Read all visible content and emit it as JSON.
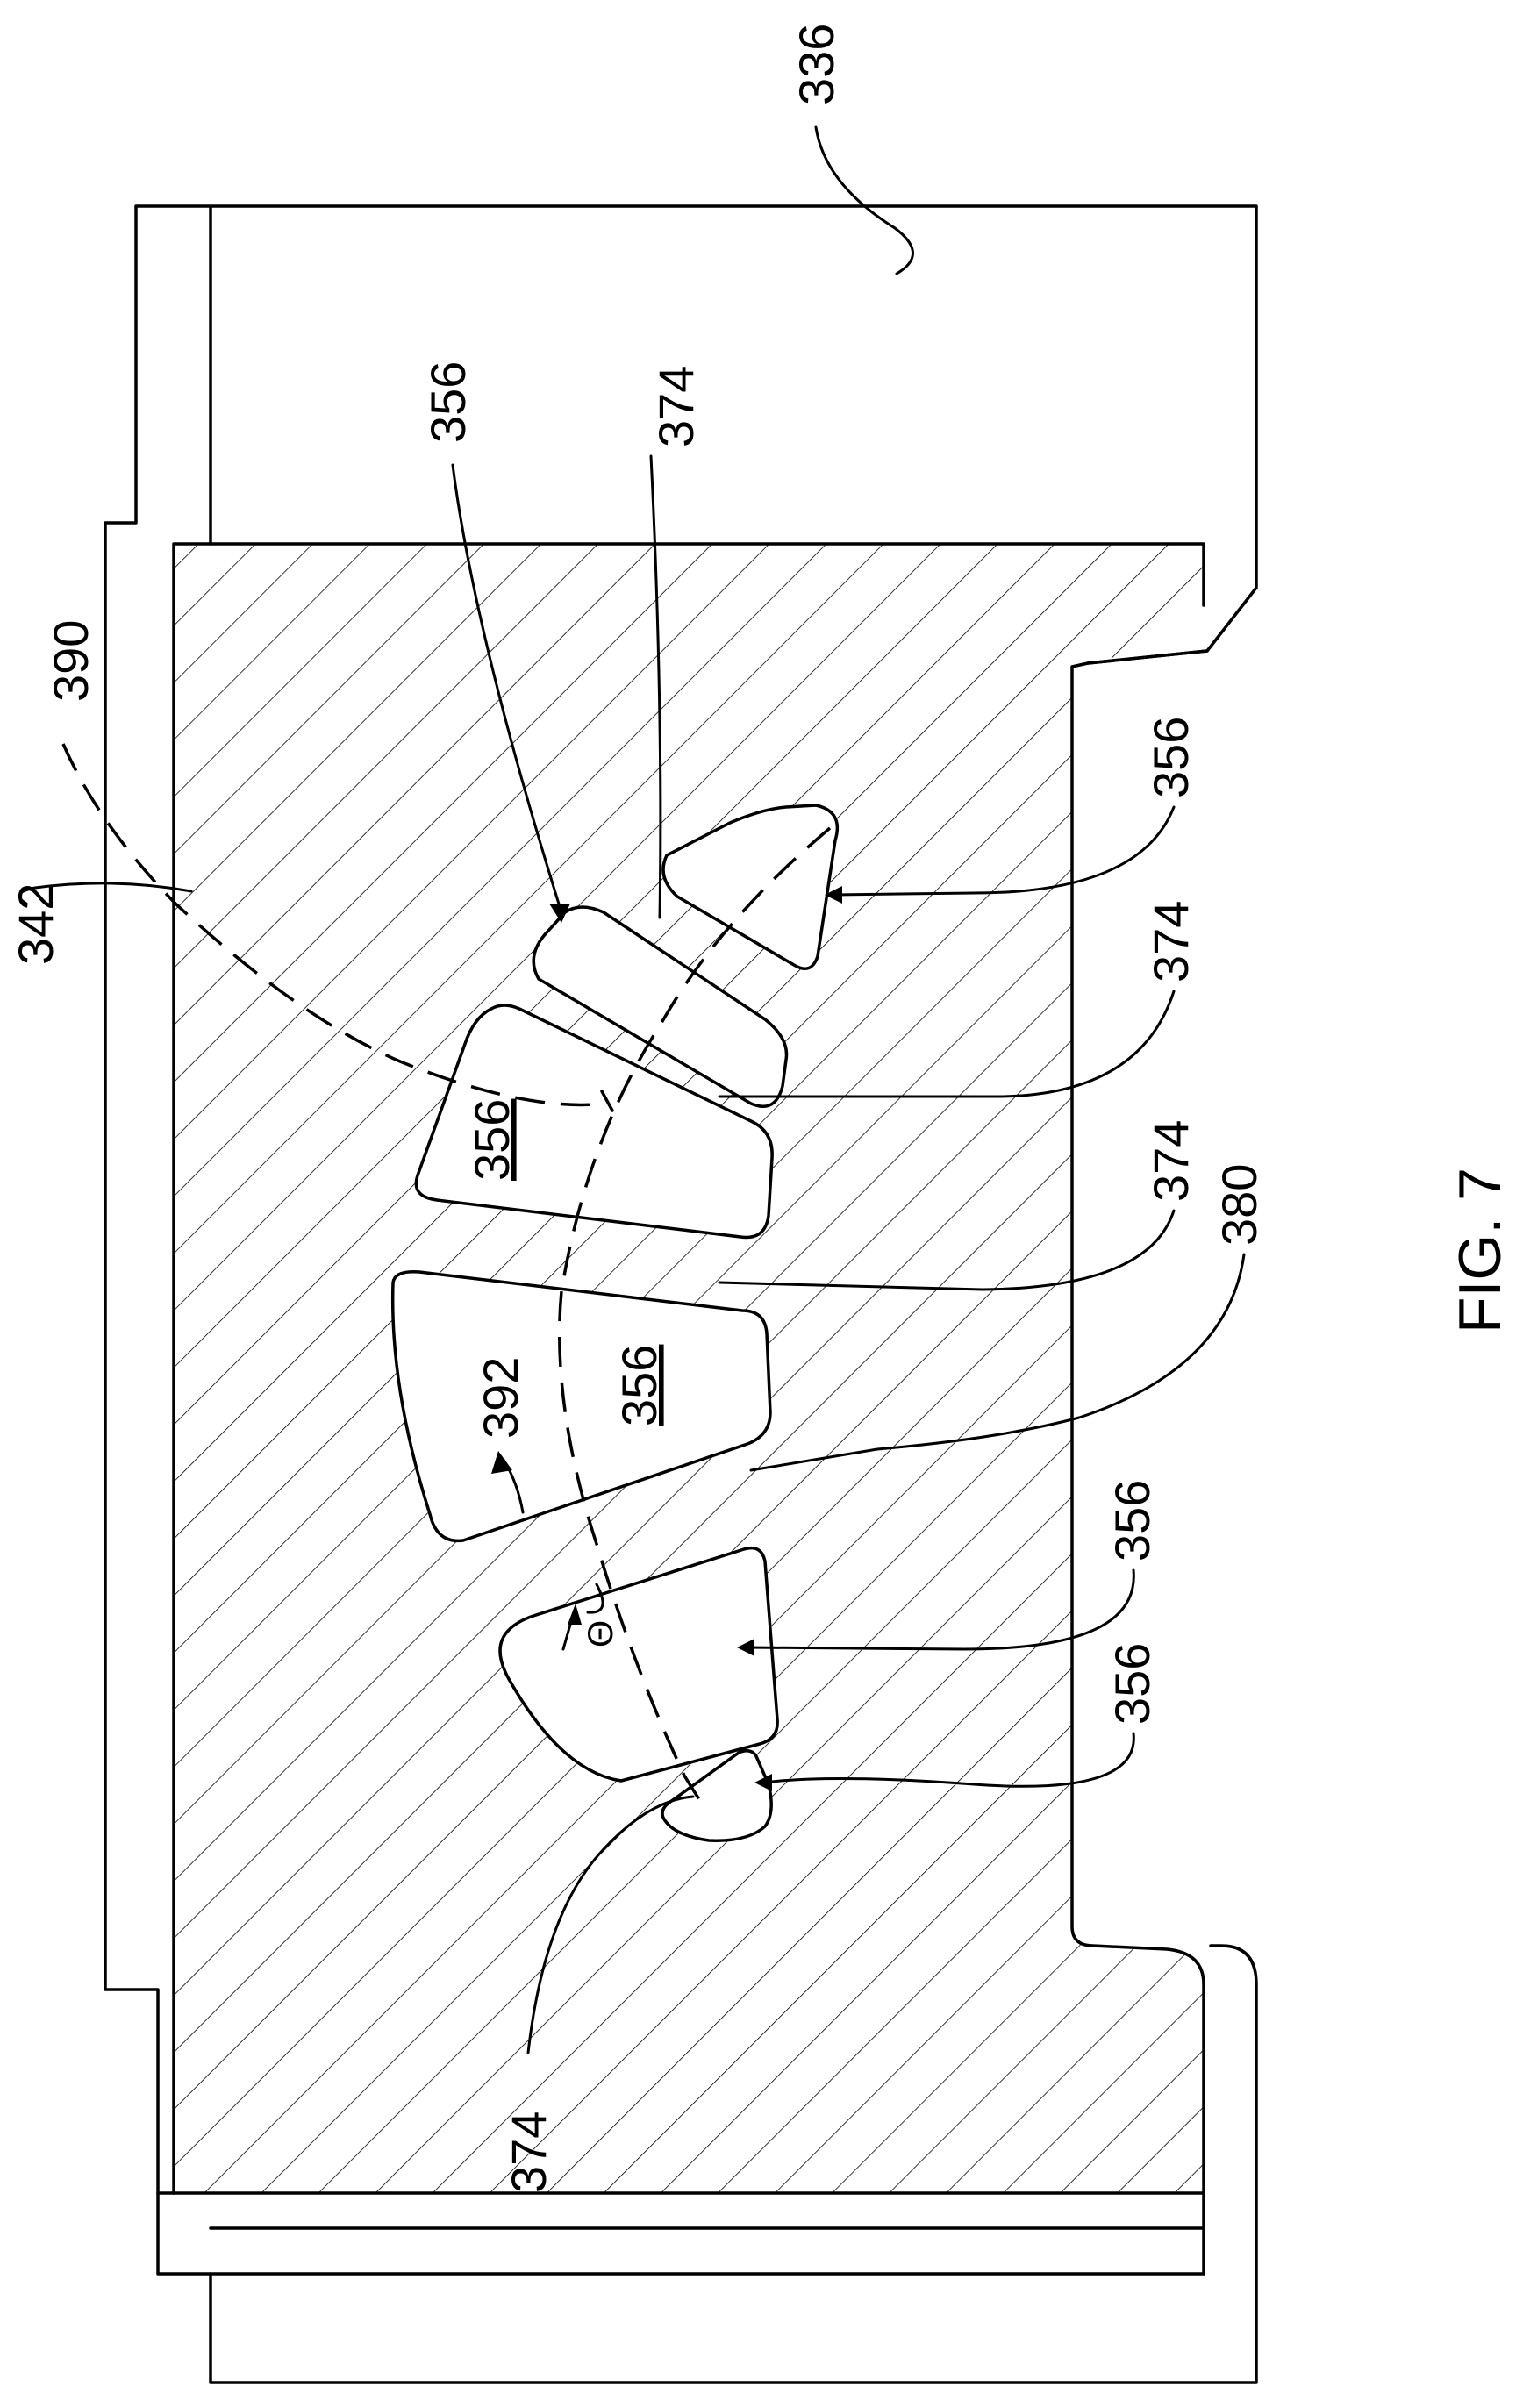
{
  "figure": {
    "caption": "FIG. 7"
  },
  "reference_numerals": {
    "housing": "336",
    "stator_body": "342",
    "slot_upper_left": "356",
    "slot_upper_right": "356",
    "slot_middle": "356",
    "slot_center_left": "356",
    "slot_center_right": "356",
    "slot_lower": "356",
    "slot_bottom": "356",
    "web_upper": "374",
    "web_upper_mid": "374",
    "web_mid": "374",
    "web_bottom": "374",
    "curve_line": "390",
    "angle_marker": "392",
    "web_center": "380",
    "theta_symbol": "Θ"
  }
}
